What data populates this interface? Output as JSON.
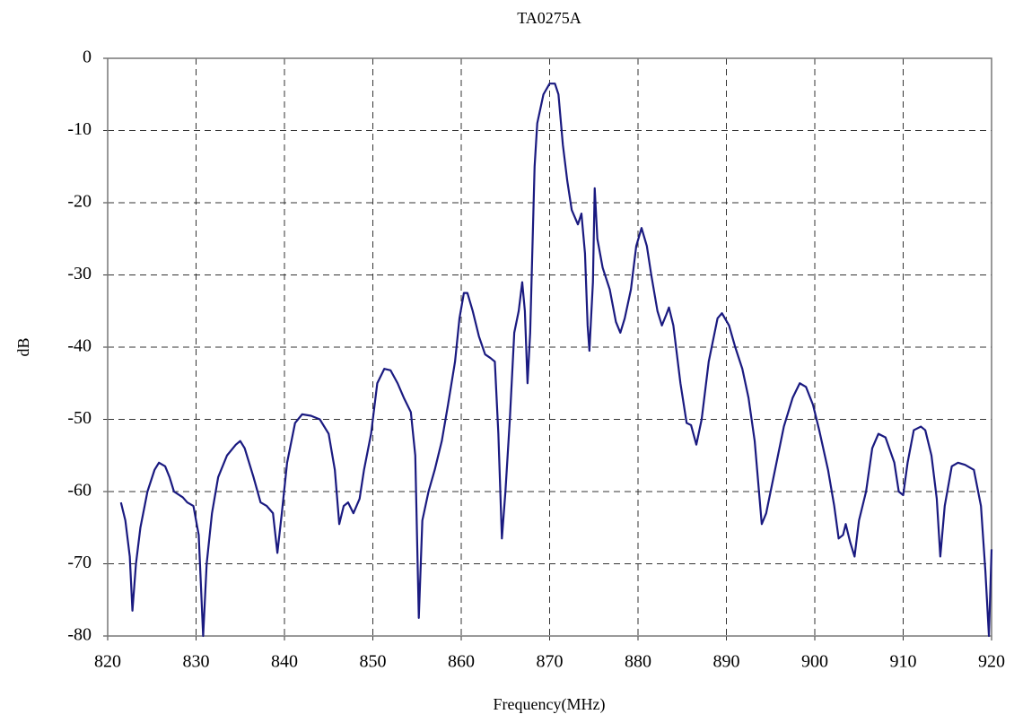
{
  "chart_data": {
    "type": "line",
    "title": "TA0275A",
    "x_label": "Frequency(MHz)",
    "y_label": "dB",
    "xlim": [
      820,
      920
    ],
    "xticks": [
      820,
      830,
      840,
      850,
      860,
      870,
      880,
      890,
      900,
      910,
      920
    ],
    "ylim": [
      -80,
      0
    ],
    "yticks": [
      0,
      -10,
      -20,
      -30,
      -40,
      -50,
      -60,
      -70,
      -80
    ],
    "grid": true,
    "x": [
      821.5,
      822,
      822.5,
      822.8,
      823.2,
      823.7,
      824.5,
      825.3,
      825.8,
      826.5,
      827,
      827.5,
      828.5,
      829,
      829.7,
      830.3,
      830.8,
      831.2,
      831.8,
      832.5,
      833.5,
      834.5,
      835,
      835.5,
      836.5,
      837.3,
      838,
      838.7,
      839.2,
      839.7,
      840.3,
      841.2,
      842,
      843,
      844,
      845,
      845.7,
      846.2,
      846.7,
      847.2,
      847.8,
      848.5,
      849,
      849.8,
      850.5,
      851.3,
      852,
      852.8,
      853.5,
      854.3,
      854.8,
      855.2,
      855.6,
      856.3,
      857,
      857.8,
      858.5,
      859.3,
      859.8,
      860.3,
      860.7,
      861.3,
      862,
      862.7,
      863.3,
      863.8,
      864.2,
      864.6,
      865,
      865.5,
      866,
      866.5,
      866.9,
      867.2,
      867.5,
      867.8,
      868.3,
      868.6,
      869.3,
      870,
      870.6,
      871,
      871.5,
      872,
      872.5,
      873.2,
      873.6,
      874,
      874.3,
      874.5,
      874.9,
      875.1,
      875.4,
      876,
      876.8,
      877.5,
      878,
      878.5,
      879.2,
      879.8,
      880.4,
      881,
      881.5,
      882.2,
      882.7,
      883.2,
      883.5,
      884,
      884.8,
      885.5,
      886,
      886.6,
      887.2,
      888,
      889,
      889.5,
      890.3,
      891,
      891.8,
      892.5,
      893.2,
      894,
      894.5,
      895.5,
      896.5,
      897.5,
      898.3,
      899,
      899.8,
      900.5,
      901.5,
      902.2,
      902.7,
      903.2,
      903.5,
      904,
      904.5,
      905,
      905.8,
      906.5,
      907.2,
      908,
      909,
      909.5,
      910,
      910.5,
      911.2,
      912,
      912.5,
      913.2,
      913.8,
      914.2,
      914.7,
      915.5,
      916.2,
      917,
      918,
      918.8,
      919.3,
      919.7,
      920
    ],
    "series": [
      {
        "name": "TA0275A",
        "color": "#1a1a80",
        "values": [
          -61.5,
          -64,
          -69,
          -76.5,
          -70,
          -65,
          -60,
          -57,
          -56,
          -56.5,
          -58,
          -60,
          -60.8,
          -61.5,
          -62,
          -66,
          -80,
          -70,
          -63,
          -58,
          -55,
          -53.5,
          -53,
          -54,
          -58,
          -61.5,
          -62,
          -63,
          -68.5,
          -63,
          -56,
          -50.5,
          -49.3,
          -49.5,
          -50,
          -52,
          -57,
          -64.5,
          -62,
          -61.5,
          -63,
          -61,
          -57,
          -52,
          -45,
          -43,
          -43.2,
          -45,
          -47,
          -49,
          -55,
          -77.5,
          -64,
          -60,
          -57,
          -53,
          -48,
          -42,
          -36,
          -32.5,
          -32.5,
          -35,
          -38.5,
          -41,
          -41.5,
          -42,
          -52,
          -66.5,
          -60,
          -50,
          -38,
          -35,
          -31,
          -35,
          -45,
          -38,
          -15,
          -9,
          -5,
          -3.5,
          -3.5,
          -5,
          -12,
          -17,
          -21,
          -23,
          -21.5,
          -27,
          -37,
          -40.5,
          -31,
          -18,
          -25,
          -29,
          -32,
          -36.5,
          -38,
          -36,
          -32,
          -26,
          -23.5,
          -26,
          -30,
          -35,
          -37,
          -35.5,
          -34.5,
          -37,
          -45,
          -50.5,
          -50.8,
          -53.5,
          -50,
          -42,
          -36,
          -35.3,
          -37,
          -40,
          -43,
          -47,
          -53,
          -64.5,
          -63,
          -57,
          -51,
          -47,
          -45,
          -45.5,
          -48,
          -51.5,
          -57,
          -62,
          -66.5,
          -66,
          -64.5,
          -67,
          -69,
          -64,
          -60,
          -54,
          -52,
          -52.5,
          -56,
          -60,
          -60.5,
          -56,
          -51.5,
          -51,
          -51.5,
          -55,
          -61,
          -69,
          -62,
          -56.5,
          -56,
          -56.3,
          -57,
          -62,
          -71,
          -80,
          -68
        ]
      }
    ]
  }
}
